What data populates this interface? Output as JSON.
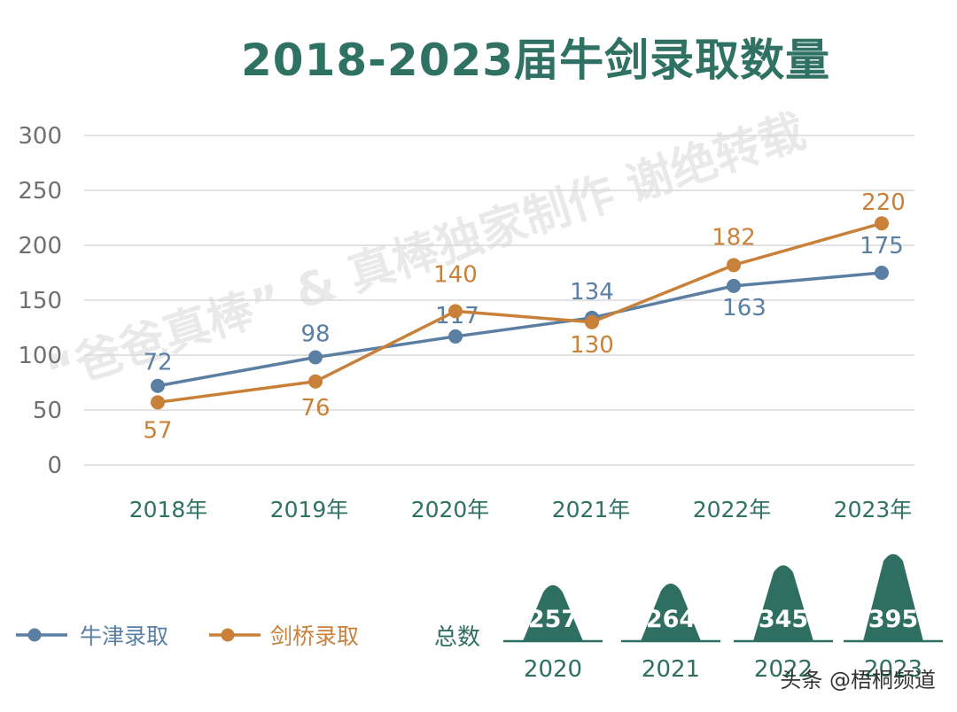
{
  "chart_data": {
    "type": "line",
    "title": "2018-2023届牛剑录取数量",
    "categories": [
      "2018年",
      "2019年",
      "2020年",
      "2021年",
      "2022年",
      "2023年"
    ],
    "series": [
      {
        "name": "牛津录取",
        "values": [
          72,
          98,
          117,
          134,
          163,
          175
        ],
        "color": "#5a7fa3"
      },
      {
        "name": "剑桥录取",
        "values": [
          57,
          76,
          140,
          130,
          182,
          220
        ],
        "color": "#c9813a"
      }
    ],
    "ylim": [
      0,
      300
    ],
    "yticks": [
      0,
      50,
      100,
      150,
      200,
      250,
      300
    ],
    "grid": true,
    "legend": "bottom-left",
    "totals": {
      "label": "总数",
      "items": [
        {
          "year": "2020",
          "value": 257
        },
        {
          "year": "2021",
          "value": 264
        },
        {
          "year": "2022",
          "value": 345
        },
        {
          "year": "2023",
          "value": 395
        }
      ]
    }
  },
  "colors": {
    "title": "#2f7263",
    "oxford": "#5a7fa3",
    "cambridge": "#c9813a",
    "bump": "#2f6f62",
    "grid": "#d9d9d9"
  },
  "watermark": "“爸爸真棒” & 真棒独家制作 谢绝转载",
  "credit": "头条 @梧桐频道"
}
